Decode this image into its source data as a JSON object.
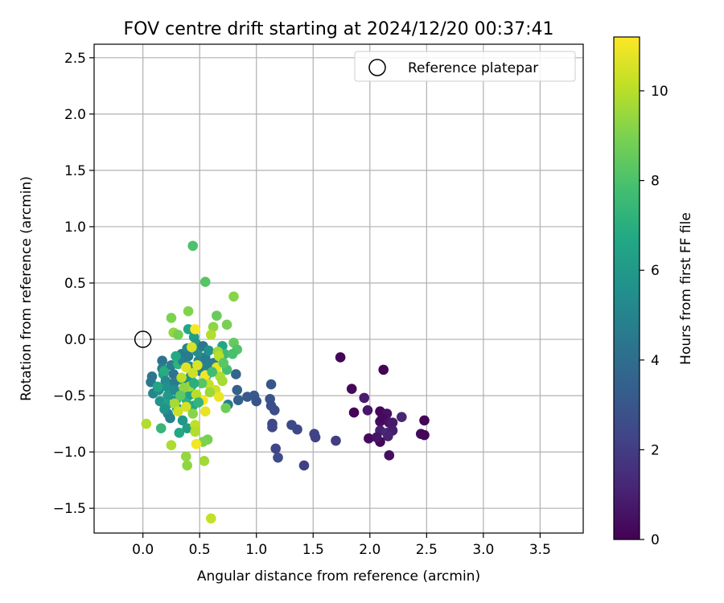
{
  "chart_data": {
    "type": "scatter",
    "title": "FOV centre drift starting at 2024/12/20 00:37:41",
    "xlabel": "Angular distance from reference (arcmin)",
    "ylabel": "Rotation from reference (arcmin)",
    "xlim": [
      -0.43,
      3.88
    ],
    "ylim": [
      -1.72,
      2.62
    ],
    "xticks": [
      "0.0",
      "0.5",
      "1.0",
      "1.5",
      "2.0",
      "2.5",
      "3.0",
      "3.5"
    ],
    "yticks": [
      "2.5",
      "2.0",
      "1.5",
      "1.0",
      "0.5",
      "0.0",
      "−0.5",
      "−1.0",
      "−1.5"
    ],
    "grid": true,
    "legend": {
      "position": "top-right",
      "entries": [
        "Reference platepar"
      ]
    },
    "reference_point": {
      "x": 0.0,
      "y": 0.0
    },
    "colorbar": {
      "label": "Hours from first FF file",
      "ticks": [
        "0",
        "2",
        "4",
        "6",
        "8",
        "10"
      ],
      "range": [
        0,
        11.2
      ],
      "colormap": "viridis"
    },
    "points": [
      {
        "x": 1.74,
        "y": -0.16,
        "c": 0.1
      },
      {
        "x": 2.12,
        "y": -0.27,
        "c": 0.1
      },
      {
        "x": 1.84,
        "y": -0.44,
        "c": 0.2
      },
      {
        "x": 1.86,
        "y": -0.65,
        "c": 0.1
      },
      {
        "x": 1.95,
        "y": -0.52,
        "c": 0.9
      },
      {
        "x": 1.98,
        "y": -0.63,
        "c": 0.7
      },
      {
        "x": 2.09,
        "y": -0.64,
        "c": 0.2
      },
      {
        "x": 2.15,
        "y": -0.66,
        "c": 0.5
      },
      {
        "x": 2.09,
        "y": -0.73,
        "c": 0.4
      },
      {
        "x": 2.11,
        "y": -0.7,
        "c": 0.3
      },
      {
        "x": 2.17,
        "y": -0.74,
        "c": 0.6
      },
      {
        "x": 2.2,
        "y": -0.74,
        "c": 0.8
      },
      {
        "x": 2.28,
        "y": -0.69,
        "c": 1.2
      },
      {
        "x": 2.09,
        "y": -0.81,
        "c": 1.0
      },
      {
        "x": 2.15,
        "y": -0.83,
        "c": 1.3
      },
      {
        "x": 2.2,
        "y": -0.81,
        "c": 0.9
      },
      {
        "x": 2.16,
        "y": -0.86,
        "c": 1.1
      },
      {
        "x": 1.99,
        "y": -0.88,
        "c": 0.3
      },
      {
        "x": 2.09,
        "y": -0.91,
        "c": 0.2
      },
      {
        "x": 2.06,
        "y": -0.87,
        "c": 0.6
      },
      {
        "x": 2.17,
        "y": -1.03,
        "c": 0.4
      },
      {
        "x": 2.48,
        "y": -0.72,
        "c": 0.1
      },
      {
        "x": 2.45,
        "y": -0.84,
        "c": 0.3
      },
      {
        "x": 2.48,
        "y": -0.85,
        "c": 0.2
      },
      {
        "x": 1.13,
        "y": -0.4,
        "c": 3.0
      },
      {
        "x": 0.83,
        "y": -0.45,
        "c": 3.5
      },
      {
        "x": 0.84,
        "y": -0.54,
        "c": 3.4
      },
      {
        "x": 0.92,
        "y": -0.51,
        "c": 3.2
      },
      {
        "x": 0.98,
        "y": -0.5,
        "c": 3.1
      },
      {
        "x": 1.0,
        "y": -0.55,
        "c": 2.9
      },
      {
        "x": 1.12,
        "y": -0.53,
        "c": 2.8
      },
      {
        "x": 1.13,
        "y": -0.59,
        "c": 2.7
      },
      {
        "x": 1.16,
        "y": -0.63,
        "c": 2.6
      },
      {
        "x": 1.14,
        "y": -0.75,
        "c": 2.5
      },
      {
        "x": 1.14,
        "y": -0.78,
        "c": 2.4
      },
      {
        "x": 1.17,
        "y": -0.97,
        "c": 2.3
      },
      {
        "x": 1.19,
        "y": -1.05,
        "c": 2.6
      },
      {
        "x": 1.31,
        "y": -0.76,
        "c": 2.5
      },
      {
        "x": 1.36,
        "y": -0.8,
        "c": 2.4
      },
      {
        "x": 1.51,
        "y": -0.84,
        "c": 2.3
      },
      {
        "x": 1.52,
        "y": -0.87,
        "c": 2.2
      },
      {
        "x": 1.42,
        "y": -1.12,
        "c": 2.1
      },
      {
        "x": 1.7,
        "y": -0.9,
        "c": 2.0
      },
      {
        "x": 0.82,
        "y": -0.31,
        "c": 3.6
      },
      {
        "x": 0.08,
        "y": -0.33,
        "c": 4.4
      },
      {
        "x": 0.07,
        "y": -0.38,
        "c": 4.5
      },
      {
        "x": 0.09,
        "y": -0.48,
        "c": 5.0
      },
      {
        "x": 0.14,
        "y": -0.45,
        "c": 5.5
      },
      {
        "x": 0.15,
        "y": -0.55,
        "c": 5.8
      },
      {
        "x": 0.17,
        "y": -0.19,
        "c": 4.3
      },
      {
        "x": 0.17,
        "y": -0.26,
        "c": 4.8
      },
      {
        "x": 0.18,
        "y": -0.31,
        "c": 6.5
      },
      {
        "x": 0.19,
        "y": -0.28,
        "c": 6.9
      },
      {
        "x": 0.2,
        "y": -0.37,
        "c": 5.2
      },
      {
        "x": 0.21,
        "y": -0.42,
        "c": 5.6
      },
      {
        "x": 0.22,
        "y": -0.5,
        "c": 6.0
      },
      {
        "x": 0.21,
        "y": -0.58,
        "c": 6.3
      },
      {
        "x": 0.22,
        "y": -0.66,
        "c": 5.1
      },
      {
        "x": 0.25,
        "y": -0.23,
        "c": 4.7
      },
      {
        "x": 0.27,
        "y": -0.31,
        "c": 4.2
      },
      {
        "x": 0.28,
        "y": -0.38,
        "c": 4.6
      },
      {
        "x": 0.28,
        "y": -0.45,
        "c": 5.3
      },
      {
        "x": 0.29,
        "y": -0.54,
        "c": 5.9
      },
      {
        "x": 0.3,
        "y": -0.61,
        "c": 6.2
      },
      {
        "x": 0.31,
        "y": -0.22,
        "c": 7.2
      },
      {
        "x": 0.34,
        "y": -0.13,
        "c": 4.5
      },
      {
        "x": 0.35,
        "y": -0.19,
        "c": 4.9
      },
      {
        "x": 0.36,
        "y": -0.37,
        "c": 5.4
      },
      {
        "x": 0.37,
        "y": -0.45,
        "c": 6.7
      },
      {
        "x": 0.38,
        "y": -0.53,
        "c": 7.1
      },
      {
        "x": 0.39,
        "y": -0.08,
        "c": 5.0
      },
      {
        "x": 0.4,
        "y": -0.15,
        "c": 4.6
      },
      {
        "x": 0.41,
        "y": -0.24,
        "c": 5.2
      },
      {
        "x": 0.42,
        "y": -0.33,
        "c": 5.7
      },
      {
        "x": 0.43,
        "y": -0.41,
        "c": 6.1
      },
      {
        "x": 0.42,
        "y": -0.49,
        "c": 6.4
      },
      {
        "x": 0.44,
        "y": -0.59,
        "c": 6.8
      },
      {
        "x": 0.4,
        "y": 0.09,
        "c": 6.6
      },
      {
        "x": 0.45,
        "y": 0.02,
        "c": 6.2
      },
      {
        "x": 0.47,
        "y": -0.04,
        "c": 5.8
      },
      {
        "x": 0.48,
        "y": -0.11,
        "c": 5.4
      },
      {
        "x": 0.49,
        "y": -0.19,
        "c": 5.1
      },
      {
        "x": 0.5,
        "y": -0.28,
        "c": 4.8
      },
      {
        "x": 0.53,
        "y": -0.06,
        "c": 4.4
      },
      {
        "x": 0.55,
        "y": -0.16,
        "c": 4.6
      },
      {
        "x": 0.56,
        "y": -0.23,
        "c": 4.9
      },
      {
        "x": 0.56,
        "y": -0.32,
        "c": 6.2
      },
      {
        "x": 0.58,
        "y": -0.1,
        "c": 5.6
      },
      {
        "x": 0.62,
        "y": -0.21,
        "c": 4.7
      },
      {
        "x": 0.7,
        "y": -0.06,
        "c": 6.6
      },
      {
        "x": 0.72,
        "y": -0.13,
        "c": 7.6
      },
      {
        "x": 0.74,
        "y": -0.27,
        "c": 7.8
      },
      {
        "x": 0.75,
        "y": -0.58,
        "c": 4.6
      },
      {
        "x": 0.35,
        "y": -0.72,
        "c": 5.9
      },
      {
        "x": 0.39,
        "y": -0.79,
        "c": 6.2
      },
      {
        "x": 0.32,
        "y": -0.83,
        "c": 6.7
      },
      {
        "x": 0.16,
        "y": -0.79,
        "c": 7.4
      },
      {
        "x": 0.44,
        "y": 0.83,
        "c": 8.0
      },
      {
        "x": 0.55,
        "y": 0.51,
        "c": 8.2
      },
      {
        "x": 0.8,
        "y": 0.38,
        "c": 9.2
      },
      {
        "x": 0.25,
        "y": 0.19,
        "c": 9.0
      },
      {
        "x": 0.4,
        "y": 0.25,
        "c": 9.1
      },
      {
        "x": 0.65,
        "y": 0.21,
        "c": 8.6
      },
      {
        "x": 0.74,
        "y": 0.13,
        "c": 8.9
      },
      {
        "x": 0.62,
        "y": 0.11,
        "c": 9.3
      },
      {
        "x": 0.27,
        "y": 0.06,
        "c": 9.4
      },
      {
        "x": 0.31,
        "y": 0.04,
        "c": 8.8
      },
      {
        "x": 0.6,
        "y": 0.04,
        "c": 9.9
      },
      {
        "x": 0.8,
        "y": -0.03,
        "c": 8.5
      },
      {
        "x": 0.83,
        "y": -0.09,
        "c": 8.1
      },
      {
        "x": 0.79,
        "y": -0.13,
        "c": 7.9
      },
      {
        "x": 0.66,
        "y": -0.11,
        "c": 9.6
      },
      {
        "x": 0.67,
        "y": -0.15,
        "c": 10.0
      },
      {
        "x": 0.46,
        "y": 0.09,
        "c": 11.1
      },
      {
        "x": 0.43,
        "y": -0.07,
        "c": 10.5
      },
      {
        "x": 0.38,
        "y": -0.25,
        "c": 10.7
      },
      {
        "x": 0.34,
        "y": -0.34,
        "c": 10.1
      },
      {
        "x": 0.44,
        "y": -0.3,
        "c": 10.3
      },
      {
        "x": 0.48,
        "y": -0.23,
        "c": 10.6
      },
      {
        "x": 0.55,
        "y": -0.32,
        "c": 11.0
      },
      {
        "x": 0.58,
        "y": -0.4,
        "c": 10.2
      },
      {
        "x": 0.65,
        "y": -0.25,
        "c": 10.8
      },
      {
        "x": 0.68,
        "y": -0.33,
        "c": 9.8
      },
      {
        "x": 0.7,
        "y": -0.37,
        "c": 9.7
      },
      {
        "x": 0.64,
        "y": -0.45,
        "c": 10.4
      },
      {
        "x": 0.67,
        "y": -0.51,
        "c": 10.9
      },
      {
        "x": 0.53,
        "y": -0.54,
        "c": 11.1
      },
      {
        "x": 0.59,
        "y": -0.47,
        "c": 9.5
      },
      {
        "x": 0.47,
        "y": -0.49,
        "c": 10.0
      },
      {
        "x": 0.41,
        "y": -0.42,
        "c": 9.6
      },
      {
        "x": 0.36,
        "y": -0.43,
        "c": 9.3
      },
      {
        "x": 0.28,
        "y": -0.57,
        "c": 9.7
      },
      {
        "x": 0.31,
        "y": -0.64,
        "c": 10.3
      },
      {
        "x": 0.38,
        "y": -0.6,
        "c": 10.5
      },
      {
        "x": 0.44,
        "y": -0.66,
        "c": 9.2
      },
      {
        "x": 0.46,
        "y": -0.76,
        "c": 10.1
      },
      {
        "x": 0.46,
        "y": -0.82,
        "c": 9.9
      },
      {
        "x": 0.55,
        "y": -0.64,
        "c": 10.8
      },
      {
        "x": 0.73,
        "y": -0.61,
        "c": 8.7
      },
      {
        "x": 0.57,
        "y": -0.89,
        "c": 8.9
      },
      {
        "x": 0.53,
        "y": -0.91,
        "c": 9.0
      },
      {
        "x": 0.47,
        "y": -0.93,
        "c": 11.0
      },
      {
        "x": 0.38,
        "y": -1.04,
        "c": 9.4
      },
      {
        "x": 0.39,
        "y": -1.12,
        "c": 9.3
      },
      {
        "x": 0.54,
        "y": -1.08,
        "c": 9.6
      },
      {
        "x": 0.25,
        "y": -0.94,
        "c": 9.8
      },
      {
        "x": 0.03,
        "y": -0.75,
        "c": 9.9
      },
      {
        "x": 0.6,
        "y": -1.59,
        "c": 10.2
      },
      {
        "x": 0.13,
        "y": -0.42,
        "c": 6.6
      },
      {
        "x": 0.19,
        "y": -0.62,
        "c": 5.7
      },
      {
        "x": 0.24,
        "y": -0.7,
        "c": 4.9
      },
      {
        "x": 0.33,
        "y": -0.5,
        "c": 8.4
      },
      {
        "x": 0.49,
        "y": -0.56,
        "c": 7.3
      },
      {
        "x": 0.52,
        "y": -0.39,
        "c": 8.2
      },
      {
        "x": 0.61,
        "y": -0.29,
        "c": 7.7
      },
      {
        "x": 0.45,
        "y": -0.39,
        "c": 7.0
      },
      {
        "x": 0.29,
        "y": -0.15,
        "c": 6.8
      },
      {
        "x": 0.71,
        "y": -0.21,
        "c": 8.3
      }
    ]
  }
}
